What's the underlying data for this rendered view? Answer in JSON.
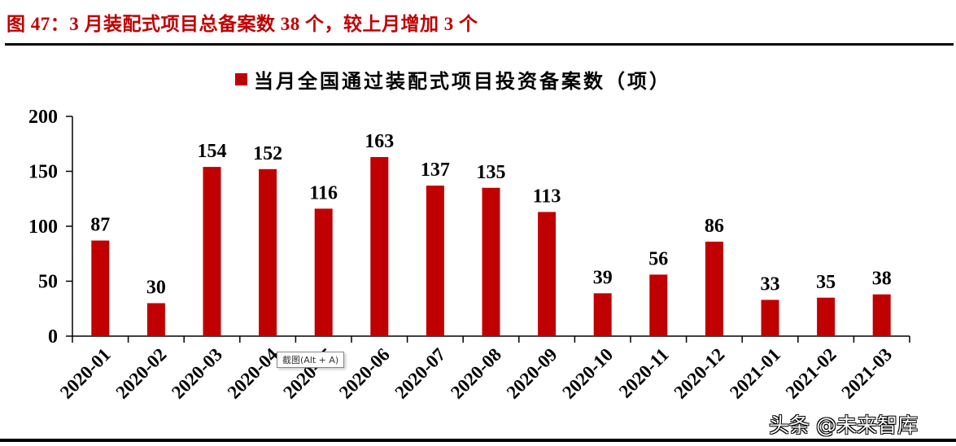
{
  "figure": {
    "title": "图 47：3 月装配式项目总备案数 38 个，较上月增加 3 个",
    "accent_color": "#c00000"
  },
  "legend": {
    "label": "当月全国通过装配式项目投资备案数（项）",
    "color": "#c00000"
  },
  "tooltip": {
    "text": "截图(Alt + A)"
  },
  "watermark": {
    "text": "头条 @未来智库"
  },
  "chart_data": {
    "type": "bar",
    "title": "",
    "xlabel": "",
    "ylabel": "",
    "ylim": [
      0,
      200
    ],
    "yticks": [
      0,
      50,
      100,
      150,
      200
    ],
    "grid": false,
    "legend_position": "top",
    "categories": [
      "2020-01",
      "2020-02",
      "2020-03",
      "2020-04",
      "2020-05",
      "2020-06",
      "2020-07",
      "2020-08",
      "2020-09",
      "2020-10",
      "2020-11",
      "2020-12",
      "2021-01",
      "2021-02",
      "2021-03"
    ],
    "series": [
      {
        "name": "当月全国通过装配式项目投资备案数（项）",
        "color": "#c00000",
        "values": [
          87,
          30,
          154,
          152,
          116,
          163,
          137,
          135,
          113,
          39,
          56,
          86,
          33,
          35,
          38
        ]
      }
    ],
    "data_labels": true
  }
}
